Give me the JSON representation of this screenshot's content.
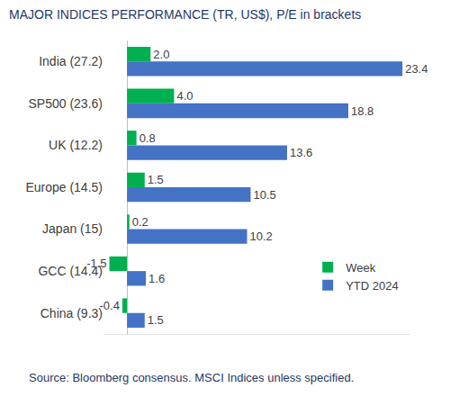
{
  "chart_data": {
    "type": "bar",
    "title": "MAJOR INDICES PERFORMANCE (TR, US$), P/E in brackets",
    "orientation": "horizontal",
    "categories": [
      "India (27.2)",
      "SP500 (23.6)",
      "UK (12.2)",
      "Europe (14.5)",
      "Japan (15)",
      "GCC (14.4)",
      "China (9.3)"
    ],
    "series": [
      {
        "name": "Week",
        "color": "#00B050",
        "values": [
          2.0,
          4.0,
          0.8,
          1.5,
          0.2,
          -1.5,
          -0.4
        ],
        "value_labels": [
          "2.0",
          "4.0",
          "0.8",
          "1.5",
          "0.2",
          "-1.5",
          "-0.4"
        ]
      },
      {
        "name": "YTD 2024",
        "color": "#4472C4",
        "values": [
          23.4,
          18.8,
          13.6,
          10.5,
          10.2,
          1.6,
          1.5
        ]
      }
    ],
    "xlim": [
      -2,
      24
    ],
    "xticks": [],
    "tick_labels": "y",
    "grid": false,
    "data_labels": true,
    "legend": "lower right",
    "annotations": [
      "Source: Bloomberg consensus. MSCI Indices unless specified."
    ]
  }
}
